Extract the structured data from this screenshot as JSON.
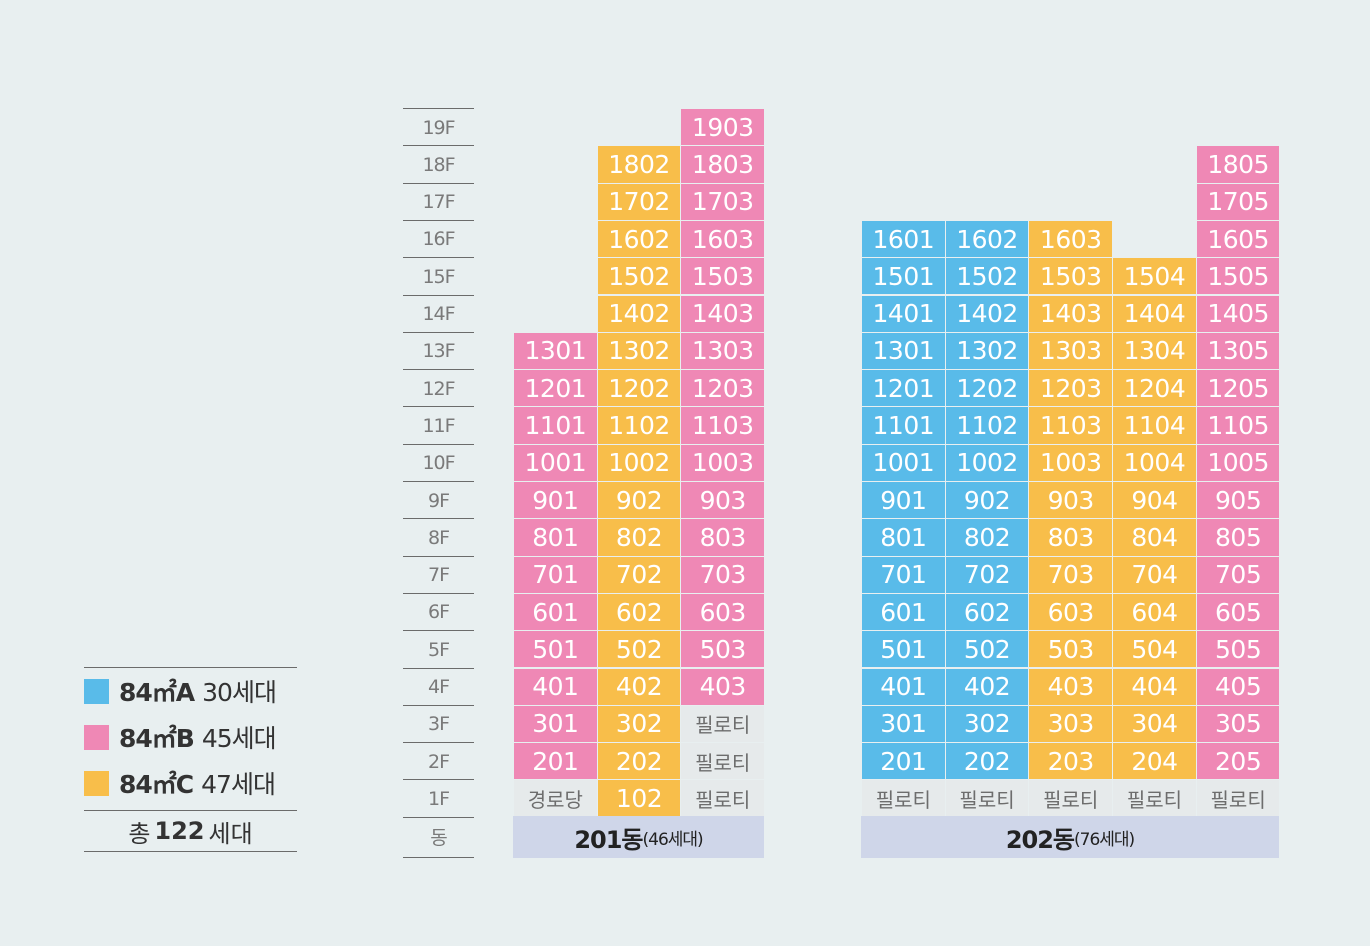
{
  "legend": {
    "items": [
      {
        "type": "84㎡A",
        "count": "30세대",
        "color": "#59bbe9"
      },
      {
        "type": "84㎡B",
        "count": "45세대",
        "color": "#ef88b5"
      },
      {
        "type": "84㎡C",
        "count": "47세대",
        "color": "#f8be4a"
      }
    ],
    "total_prefix": "총",
    "total_value": "122",
    "total_suffix": "세대"
  },
  "floors": [
    "19F",
    "18F",
    "17F",
    "16F",
    "15F",
    "14F",
    "13F",
    "12F",
    "11F",
    "10F",
    "9F",
    "8F",
    "7F",
    "6F",
    "5F",
    "4F",
    "3F",
    "2F",
    "1F",
    "동"
  ],
  "buildings": [
    {
      "name": "201동",
      "sub": "(46세대)",
      "columns": [
        {
          "units": [
            {
              "f": 13,
              "label": "1301",
              "t": "B"
            },
            {
              "f": 12,
              "label": "1201",
              "t": "B"
            },
            {
              "f": 11,
              "label": "1101",
              "t": "B"
            },
            {
              "f": 10,
              "label": "1001",
              "t": "B"
            },
            {
              "f": 9,
              "label": "901",
              "t": "B"
            },
            {
              "f": 8,
              "label": "801",
              "t": "B"
            },
            {
              "f": 7,
              "label": "701",
              "t": "B"
            },
            {
              "f": 6,
              "label": "601",
              "t": "B"
            },
            {
              "f": 5,
              "label": "501",
              "t": "B"
            },
            {
              "f": 4,
              "label": "401",
              "t": "B"
            },
            {
              "f": 3,
              "label": "301",
              "t": "B"
            },
            {
              "f": 2,
              "label": "201",
              "t": "B"
            },
            {
              "f": 1,
              "label": "경로당",
              "t": "G"
            }
          ]
        },
        {
          "units": [
            {
              "f": 18,
              "label": "1802",
              "t": "C"
            },
            {
              "f": 17,
              "label": "1702",
              "t": "C"
            },
            {
              "f": 16,
              "label": "1602",
              "t": "C"
            },
            {
              "f": 15,
              "label": "1502",
              "t": "C"
            },
            {
              "f": 14,
              "label": "1402",
              "t": "C"
            },
            {
              "f": 13,
              "label": "1302",
              "t": "C"
            },
            {
              "f": 12,
              "label": "1202",
              "t": "C"
            },
            {
              "f": 11,
              "label": "1102",
              "t": "C"
            },
            {
              "f": 10,
              "label": "1002",
              "t": "C"
            },
            {
              "f": 9,
              "label": "902",
              "t": "C"
            },
            {
              "f": 8,
              "label": "802",
              "t": "C"
            },
            {
              "f": 7,
              "label": "702",
              "t": "C"
            },
            {
              "f": 6,
              "label": "602",
              "t": "C"
            },
            {
              "f": 5,
              "label": "502",
              "t": "C"
            },
            {
              "f": 4,
              "label": "402",
              "t": "C"
            },
            {
              "f": 3,
              "label": "302",
              "t": "C"
            },
            {
              "f": 2,
              "label": "202",
              "t": "C"
            },
            {
              "f": 1,
              "label": "102",
              "t": "C"
            }
          ]
        },
        {
          "units": [
            {
              "f": 19,
              "label": "1903",
              "t": "B"
            },
            {
              "f": 18,
              "label": "1803",
              "t": "B"
            },
            {
              "f": 17,
              "label": "1703",
              "t": "B"
            },
            {
              "f": 16,
              "label": "1603",
              "t": "B"
            },
            {
              "f": 15,
              "label": "1503",
              "t": "B"
            },
            {
              "f": 14,
              "label": "1403",
              "t": "B"
            },
            {
              "f": 13,
              "label": "1303",
              "t": "B"
            },
            {
              "f": 12,
              "label": "1203",
              "t": "B"
            },
            {
              "f": 11,
              "label": "1103",
              "t": "B"
            },
            {
              "f": 10,
              "label": "1003",
              "t": "B"
            },
            {
              "f": 9,
              "label": "903",
              "t": "B"
            },
            {
              "f": 8,
              "label": "803",
              "t": "B"
            },
            {
              "f": 7,
              "label": "703",
              "t": "B"
            },
            {
              "f": 6,
              "label": "603",
              "t": "B"
            },
            {
              "f": 5,
              "label": "503",
              "t": "B"
            },
            {
              "f": 4,
              "label": "403",
              "t": "B"
            },
            {
              "f": 3,
              "label": "필로티",
              "t": "P"
            },
            {
              "f": 2,
              "label": "필로티",
              "t": "P"
            },
            {
              "f": 1,
              "label": "필로티",
              "t": "P"
            }
          ]
        }
      ]
    },
    {
      "name": "202동",
      "sub": "(76세대)",
      "columns": [
        {
          "units": [
            {
              "f": 16,
              "label": "1601",
              "t": "A"
            },
            {
              "f": 15,
              "label": "1501",
              "t": "A"
            },
            {
              "f": 14,
              "label": "1401",
              "t": "A"
            },
            {
              "f": 13,
              "label": "1301",
              "t": "A"
            },
            {
              "f": 12,
              "label": "1201",
              "t": "A"
            },
            {
              "f": 11,
              "label": "1101",
              "t": "A"
            },
            {
              "f": 10,
              "label": "1001",
              "t": "A"
            },
            {
              "f": 9,
              "label": "901",
              "t": "A"
            },
            {
              "f": 8,
              "label": "801",
              "t": "A"
            },
            {
              "f": 7,
              "label": "701",
              "t": "A"
            },
            {
              "f": 6,
              "label": "601",
              "t": "A"
            },
            {
              "f": 5,
              "label": "501",
              "t": "A"
            },
            {
              "f": 4,
              "label": "401",
              "t": "A"
            },
            {
              "f": 3,
              "label": "301",
              "t": "A"
            },
            {
              "f": 2,
              "label": "201",
              "t": "A"
            },
            {
              "f": 1,
              "label": "필로티",
              "t": "P"
            }
          ]
        },
        {
          "units": [
            {
              "f": 16,
              "label": "1602",
              "t": "A"
            },
            {
              "f": 15,
              "label": "1502",
              "t": "A"
            },
            {
              "f": 14,
              "label": "1402",
              "t": "A"
            },
            {
              "f": 13,
              "label": "1302",
              "t": "A"
            },
            {
              "f": 12,
              "label": "1202",
              "t": "A"
            },
            {
              "f": 11,
              "label": "1102",
              "t": "A"
            },
            {
              "f": 10,
              "label": "1002",
              "t": "A"
            },
            {
              "f": 9,
              "label": "902",
              "t": "A"
            },
            {
              "f": 8,
              "label": "802",
              "t": "A"
            },
            {
              "f": 7,
              "label": "702",
              "t": "A"
            },
            {
              "f": 6,
              "label": "602",
              "t": "A"
            },
            {
              "f": 5,
              "label": "502",
              "t": "A"
            },
            {
              "f": 4,
              "label": "402",
              "t": "A"
            },
            {
              "f": 3,
              "label": "302",
              "t": "A"
            },
            {
              "f": 2,
              "label": "202",
              "t": "A"
            },
            {
              "f": 1,
              "label": "필로티",
              "t": "P"
            }
          ]
        },
        {
          "units": [
            {
              "f": 16,
              "label": "1603",
              "t": "C"
            },
            {
              "f": 15,
              "label": "1503",
              "t": "C"
            },
            {
              "f": 14,
              "label": "1403",
              "t": "C"
            },
            {
              "f": 13,
              "label": "1303",
              "t": "C"
            },
            {
              "f": 12,
              "label": "1203",
              "t": "C"
            },
            {
              "f": 11,
              "label": "1103",
              "t": "C"
            },
            {
              "f": 10,
              "label": "1003",
              "t": "C"
            },
            {
              "f": 9,
              "label": "903",
              "t": "C"
            },
            {
              "f": 8,
              "label": "803",
              "t": "C"
            },
            {
              "f": 7,
              "label": "703",
              "t": "C"
            },
            {
              "f": 6,
              "label": "603",
              "t": "C"
            },
            {
              "f": 5,
              "label": "503",
              "t": "C"
            },
            {
              "f": 4,
              "label": "403",
              "t": "C"
            },
            {
              "f": 3,
              "label": "303",
              "t": "C"
            },
            {
              "f": 2,
              "label": "203",
              "t": "C"
            },
            {
              "f": 1,
              "label": "필로티",
              "t": "P"
            }
          ]
        },
        {
          "units": [
            {
              "f": 15,
              "label": "1504",
              "t": "C"
            },
            {
              "f": 14,
              "label": "1404",
              "t": "C"
            },
            {
              "f": 13,
              "label": "1304",
              "t": "C"
            },
            {
              "f": 12,
              "label": "1204",
              "t": "C"
            },
            {
              "f": 11,
              "label": "1104",
              "t": "C"
            },
            {
              "f": 10,
              "label": "1004",
              "t": "C"
            },
            {
              "f": 9,
              "label": "904",
              "t": "C"
            },
            {
              "f": 8,
              "label": "804",
              "t": "C"
            },
            {
              "f": 7,
              "label": "704",
              "t": "C"
            },
            {
              "f": 6,
              "label": "604",
              "t": "C"
            },
            {
              "f": 5,
              "label": "504",
              "t": "C"
            },
            {
              "f": 4,
              "label": "404",
              "t": "C"
            },
            {
              "f": 3,
              "label": "304",
              "t": "C"
            },
            {
              "f": 2,
              "label": "204",
              "t": "C"
            },
            {
              "f": 1,
              "label": "필로티",
              "t": "P"
            }
          ]
        },
        {
          "units": [
            {
              "f": 18,
              "label": "1805",
              "t": "B"
            },
            {
              "f": 17,
              "label": "1705",
              "t": "B"
            },
            {
              "f": 16,
              "label": "1605",
              "t": "B"
            },
            {
              "f": 15,
              "label": "1505",
              "t": "B"
            },
            {
              "f": 14,
              "label": "1405",
              "t": "B"
            },
            {
              "f": 13,
              "label": "1305",
              "t": "B"
            },
            {
              "f": 12,
              "label": "1205",
              "t": "B"
            },
            {
              "f": 11,
              "label": "1105",
              "t": "B"
            },
            {
              "f": 10,
              "label": "1005",
              "t": "B"
            },
            {
              "f": 9,
              "label": "905",
              "t": "B"
            },
            {
              "f": 8,
              "label": "805",
              "t": "B"
            },
            {
              "f": 7,
              "label": "705",
              "t": "B"
            },
            {
              "f": 6,
              "label": "605",
              "t": "B"
            },
            {
              "f": 5,
              "label": "505",
              "t": "B"
            },
            {
              "f": 4,
              "label": "405",
              "t": "B"
            },
            {
              "f": 3,
              "label": "305",
              "t": "B"
            },
            {
              "f": 2,
              "label": "205",
              "t": "B"
            },
            {
              "f": 1,
              "label": "필로티",
              "t": "P"
            }
          ]
        }
      ]
    }
  ]
}
